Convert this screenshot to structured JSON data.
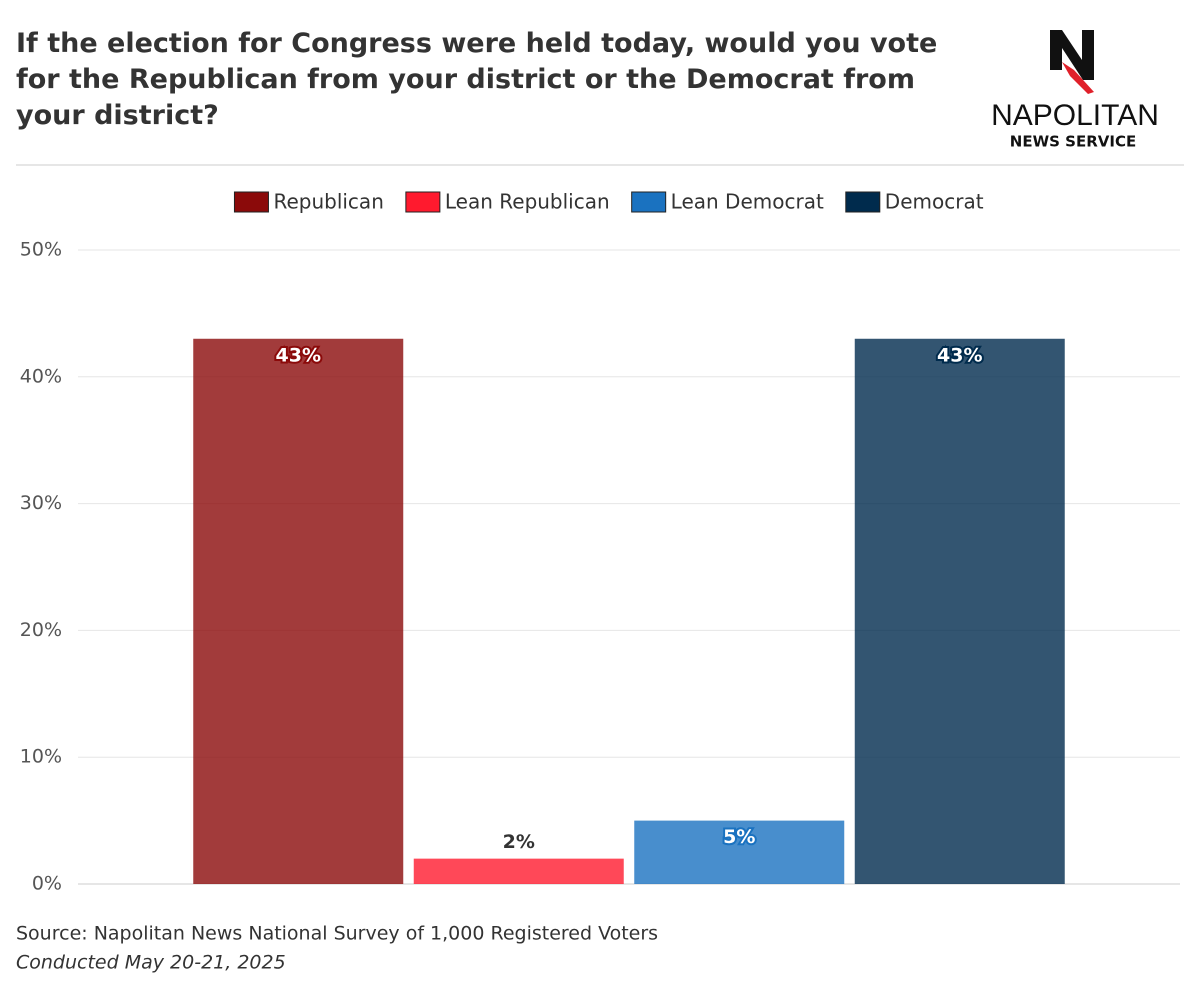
{
  "chart_data": {
    "type": "bar",
    "title": "If the election for Congress were held today, would you vote for the Republican from your district or the Democrat from your district?",
    "series": [
      {
        "name": "Republican",
        "color": "#8b0a0a",
        "values": [
          43
        ],
        "value_labels": [
          "43%"
        ]
      },
      {
        "name": "Lean Republican",
        "color": "#ff1a2e",
        "values": [
          2
        ],
        "value_labels": [
          "2%"
        ]
      },
      {
        "name": "Lean Democrat",
        "color": "#1a72c0",
        "values": [
          5
        ],
        "value_labels": [
          "5%"
        ]
      },
      {
        "name": "Democrat",
        "color": "#002b4d",
        "values": [
          43
        ],
        "value_labels": [
          "43%"
        ]
      }
    ],
    "ylim": [
      0,
      50
    ],
    "yticks": [
      {
        "value": 0,
        "label": "0%"
      },
      {
        "value": 10,
        "label": "10%"
      },
      {
        "value": 20,
        "label": "20%"
      },
      {
        "value": 30,
        "label": "30%"
      },
      {
        "value": 40,
        "label": "40%"
      },
      {
        "value": 50,
        "label": "50%"
      }
    ],
    "grid": true,
    "legend": "top",
    "source": "Source: Napolitan News National Survey of 1,000 Registered Voters",
    "note": "Conducted May 20-21, 2025"
  },
  "logo": {
    "name": "NAPOLITAN",
    "tagline": "NEWS SERVICE"
  }
}
